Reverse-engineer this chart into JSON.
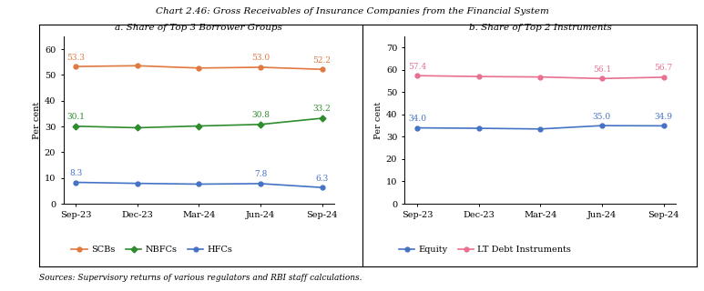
{
  "title": "Chart 2.46: Gross Receivables of Insurance Companies from the Financial System",
  "source_text": "Sources: Supervisory returns of various regulators and RBI staff calculations.",
  "x_labels": [
    "Sep-23",
    "Dec-23",
    "Mar-24",
    "Jun-24",
    "Sep-24"
  ],
  "panel_a": {
    "title": "a. Share of Top 3 Borrower Groups",
    "ylabel": "Per cent",
    "ylim": [
      0,
      65
    ],
    "yticks": [
      0,
      10,
      20,
      30,
      40,
      50,
      60
    ],
    "series": [
      {
        "label": "SCBs",
        "values": [
          53.3,
          53.6,
          52.7,
          53.0,
          52.2
        ],
        "color": "#E07840",
        "marker": "o",
        "annotations": [
          53.3,
          null,
          null,
          53.0,
          52.2
        ]
      },
      {
        "label": "NBFCs",
        "values": [
          30.1,
          29.5,
          30.2,
          30.8,
          33.2
        ],
        "color": "#2E8B2E",
        "marker": "D",
        "annotations": [
          30.1,
          null,
          null,
          30.8,
          33.2
        ]
      },
      {
        "label": "HFCs",
        "values": [
          8.3,
          7.9,
          7.6,
          7.8,
          6.3
        ],
        "color": "#4472C4",
        "marker": "o",
        "annotations": [
          8.3,
          null,
          null,
          7.8,
          6.3
        ]
      }
    ]
  },
  "panel_b": {
    "title": "b. Share of Top 2 Instruments",
    "ylabel": "Per cent",
    "ylim": [
      0,
      75
    ],
    "yticks": [
      0,
      10,
      20,
      30,
      40,
      50,
      60,
      70
    ],
    "series": [
      {
        "label": "Equity",
        "values": [
          34.0,
          33.8,
          33.5,
          35.0,
          34.9
        ],
        "color": "#4472C4",
        "marker": "o",
        "annotations": [
          34.0,
          null,
          null,
          35.0,
          34.9
        ]
      },
      {
        "label": "LT Debt Instruments",
        "values": [
          57.4,
          57.0,
          56.8,
          56.1,
          56.7
        ],
        "color": "#E87090",
        "marker": "o",
        "annotations": [
          57.4,
          null,
          null,
          56.1,
          56.7
        ]
      }
    ]
  }
}
